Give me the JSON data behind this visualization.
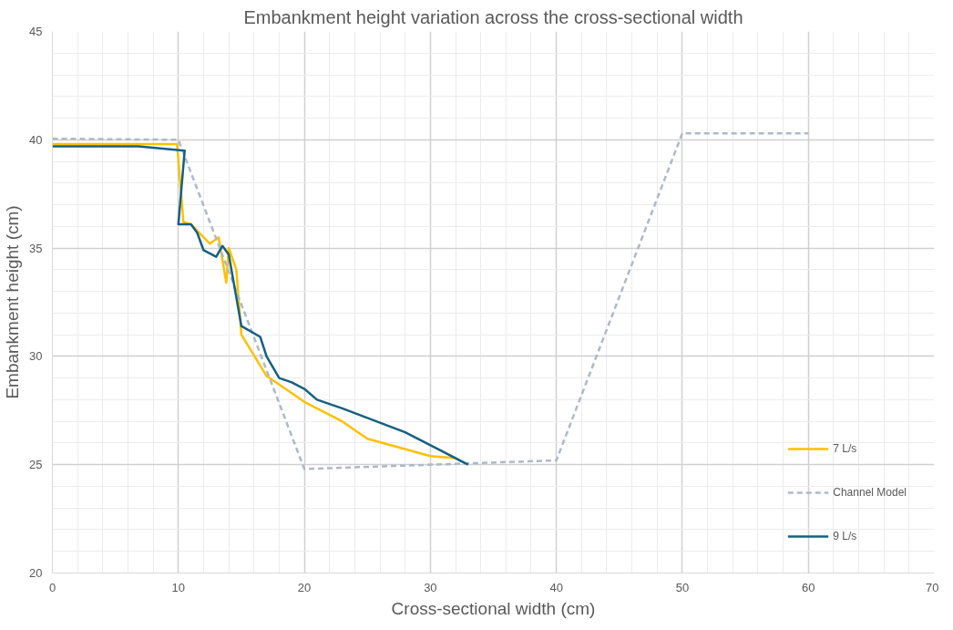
{
  "chart_data": {
    "type": "line",
    "title": "Embankment height variation across the cross-sectional width",
    "xlabel": "Cross-sectional width (cm)",
    "ylabel": "Embankment height (cm)",
    "xlim": [
      0,
      70
    ],
    "xticks": [
      0,
      10,
      20,
      30,
      40,
      50,
      60,
      70
    ],
    "ylim": [
      20,
      45
    ],
    "yticks": [
      20,
      25,
      30,
      35,
      40,
      45
    ],
    "grid": true,
    "legend": "bottom right",
    "line_style": "solid",
    "series": [
      {
        "name": "7 L/s",
        "color": "#ffc000",
        "x": [
          0,
          9.9,
          10.4,
          11,
          12.5,
          13.2,
          13.8,
          14,
          14.6,
          15,
          17,
          20,
          23,
          25,
          30,
          32
        ],
        "values": [
          39.8,
          39.8,
          36.2,
          36.1,
          35.2,
          35.5,
          33.4,
          35,
          34,
          31,
          29.1,
          27.9,
          27,
          26.2,
          25.4,
          25.3
        ]
      },
      {
        "name": "Channel Model",
        "color": "#adb9ca",
        "line_style": "dashed",
        "x": [
          0,
          10,
          20,
          40,
          50,
          60
        ],
        "values": [
          40.05,
          40,
          24.8,
          25.2,
          40.3,
          40.3
        ]
      },
      {
        "name": "9 L/s",
        "color": "#156082",
        "x": [
          0,
          6.8,
          10.5,
          10,
          11,
          11.5,
          12,
          13,
          13.5,
          14,
          15,
          16.5,
          17,
          18,
          19,
          20,
          21,
          23,
          28,
          31,
          33
        ],
        "values": [
          39.7,
          39.7,
          39.5,
          36.1,
          36.1,
          35.7,
          34.9,
          34.6,
          35.1,
          34.7,
          31.4,
          30.9,
          30,
          29,
          28.8,
          28.5,
          28,
          27.6,
          26.5,
          25.6,
          25
        ]
      }
    ]
  }
}
